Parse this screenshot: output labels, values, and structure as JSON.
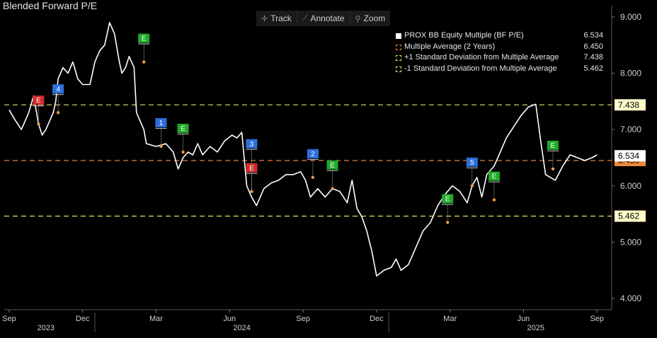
{
  "title": "Blended Forward P/E",
  "toolbar": {
    "track": {
      "label": "Track",
      "icon": "crosshair-icon"
    },
    "annotate": {
      "label": "Annotate",
      "icon": "pencil-icon"
    },
    "zoom": {
      "label": "Zoom",
      "icon": "magnifier-icon"
    }
  },
  "legend": [
    {
      "label": "PROX BB Equity Multiple (BF P/E)",
      "value": "6.534",
      "color": "#ffffff",
      "style": "solid"
    },
    {
      "label": "Multiple Average (2 Years)",
      "value": "6.450",
      "color": "#e8803a",
      "style": "dashed"
    },
    {
      "label": "+1 Standard Deviation from Multiple Average",
      "value": "7.438",
      "color": "#e8e060",
      "style": "dashed"
    },
    {
      "label": "-1 Standard Deviation from Multiple Average",
      "value": "5.462",
      "color": "#e8e060",
      "style": "dashed"
    }
  ],
  "chart_data": {
    "type": "line",
    "ylim": [
      3.8,
      9.2
    ],
    "y_ticks": [
      "4.000",
      "5.000",
      "6.000",
      "7.000",
      "8.000",
      "9.000"
    ],
    "x_months": [
      {
        "label": "Sep",
        "t": 0.0
      },
      {
        "label": "Dec",
        "t": 3.0
      },
      {
        "label": "Mar",
        "t": 6.0
      },
      {
        "label": "Jun",
        "t": 9.0
      },
      {
        "label": "Sep",
        "t": 12.0
      },
      {
        "label": "Dec",
        "t": 15.0
      },
      {
        "label": "Mar",
        "t": 18.0
      },
      {
        "label": "Jun",
        "t": 21.0
      },
      {
        "label": "Sep",
        "t": 24.0
      }
    ],
    "x_years": [
      {
        "label": "2023",
        "t": 1.5
      },
      {
        "label": "2024",
        "t": 9.5
      },
      {
        "label": "2025",
        "t": 21.5
      }
    ],
    "year_dividers": [
      3.5,
      15.5
    ],
    "xlim": [
      -0.2,
      24.6
    ],
    "series": [
      {
        "name": "PROX BB Equity Multiple (BF P/E)",
        "color": "#ffffff",
        "t": [
          0,
          0.2,
          0.5,
          0.8,
          1.0,
          1.2,
          1.35,
          1.5,
          1.8,
          1.9,
          2.0,
          2.2,
          2.4,
          2.6,
          2.8,
          3.0,
          3.3,
          3.5,
          3.7,
          3.9,
          4.0,
          4.1,
          4.3,
          4.5,
          4.6,
          4.75,
          4.9,
          5.1,
          5.2,
          5.4,
          5.5,
          5.6,
          6.0,
          6.4,
          6.7,
          6.9,
          7.1,
          7.3,
          7.5,
          7.7,
          7.9,
          8.2,
          8.5,
          8.8,
          9.1,
          9.3,
          9.5,
          9.7,
          9.9,
          10.1,
          10.4,
          10.7,
          11.0,
          11.3,
          11.6,
          11.9,
          12.1,
          12.3,
          12.6,
          12.9,
          13.2,
          13.5,
          13.8,
          14.0,
          14.2,
          14.4,
          14.6,
          14.8,
          15.0,
          15.3,
          15.6,
          15.8,
          16.0,
          16.3,
          16.6,
          16.9,
          17.2,
          17.5,
          17.8,
          18.1,
          18.4,
          18.7,
          18.9,
          19.1,
          19.3,
          19.5,
          19.8,
          20.0,
          20.3,
          20.6,
          20.9,
          21.2,
          21.5,
          21.7,
          21.9,
          22.1,
          22.3,
          22.6,
          22.9,
          23.2,
          23.5,
          23.8,
          24.0
        ],
        "values": [
          7.35,
          7.2,
          7.0,
          7.3,
          7.6,
          7.1,
          6.9,
          7.0,
          7.3,
          7.5,
          7.9,
          8.1,
          8.0,
          8.2,
          7.9,
          7.8,
          7.8,
          8.2,
          8.4,
          8.5,
          8.7,
          8.9,
          8.7,
          8.2,
          8.0,
          8.1,
          8.3,
          8.1,
          7.3,
          7.1,
          7.0,
          6.75,
          6.7,
          6.75,
          6.6,
          6.3,
          6.5,
          6.6,
          6.55,
          6.75,
          6.55,
          6.7,
          6.6,
          6.8,
          6.9,
          6.85,
          6.95,
          6.0,
          5.8,
          5.65,
          5.95,
          6.05,
          6.1,
          6.2,
          6.2,
          6.25,
          6.1,
          5.8,
          5.95,
          5.8,
          5.95,
          5.9,
          5.7,
          6.1,
          5.6,
          5.45,
          5.2,
          4.85,
          4.4,
          4.5,
          4.55,
          4.7,
          4.5,
          4.6,
          4.9,
          5.2,
          5.35,
          5.65,
          5.85,
          6.0,
          5.9,
          5.7,
          6.0,
          6.15,
          5.8,
          6.2,
          6.35,
          6.55,
          6.85,
          7.05,
          7.25,
          7.4,
          7.45,
          6.8,
          6.2,
          6.15,
          6.1,
          6.35,
          6.55,
          6.5,
          6.45,
          6.5,
          6.55
        ]
      }
    ],
    "reference_lines": [
      {
        "name": "+1 Standard Deviation from Multiple Average",
        "value": 7.438,
        "label": "7.438",
        "color": "#e8e060",
        "label_bg": "#fffcc8"
      },
      {
        "name": "Multiple Average (2 Years)",
        "value": 6.45,
        "label": "6.450",
        "color": "#e8803a",
        "label_bg": "#f08a3c"
      },
      {
        "name": "-1 Standard Deviation from Multiple Average",
        "value": 5.462,
        "label": "5.462",
        "color": "#e8e060",
        "label_bg": "#fffcc8"
      }
    ],
    "last_value": {
      "value": 6.534,
      "label": "6.534",
      "label_bg": "#ffffff"
    },
    "event_markers": [
      {
        "t": 1.2,
        "y": 7.1,
        "label": "E",
        "color": "#d42a2a"
      },
      {
        "t": 2.0,
        "y": 7.3,
        "label": "4",
        "color": "#2d6fdc"
      },
      {
        "t": 5.5,
        "y": 8.2,
        "label": "E",
        "color": "#1faa2a"
      },
      {
        "t": 6.2,
        "y": 6.7,
        "label": "1",
        "color": "#2d6fdc"
      },
      {
        "t": 7.1,
        "y": 6.6,
        "label": "E",
        "color": "#1faa2a"
      },
      {
        "t": 9.9,
        "y": 5.9,
        "label": "E",
        "color": "#d42a2a"
      },
      {
        "t": 9.9,
        "y": 5.9,
        "label": "3",
        "color": "#2d6fdc"
      },
      {
        "t": 12.4,
        "y": 6.15,
        "label": "2",
        "color": "#2d6fdc"
      },
      {
        "t": 13.2,
        "y": 5.95,
        "label": "E",
        "color": "#1faa2a"
      },
      {
        "t": 17.9,
        "y": 5.35,
        "label": "E",
        "color": "#1faa2a"
      },
      {
        "t": 18.9,
        "y": 6.0,
        "label": "5",
        "color": "#2d6fdc"
      },
      {
        "t": 19.8,
        "y": 5.75,
        "label": "E",
        "color": "#1faa2a"
      },
      {
        "t": 22.2,
        "y": 6.3,
        "label": "E",
        "color": "#1faa2a"
      }
    ]
  }
}
